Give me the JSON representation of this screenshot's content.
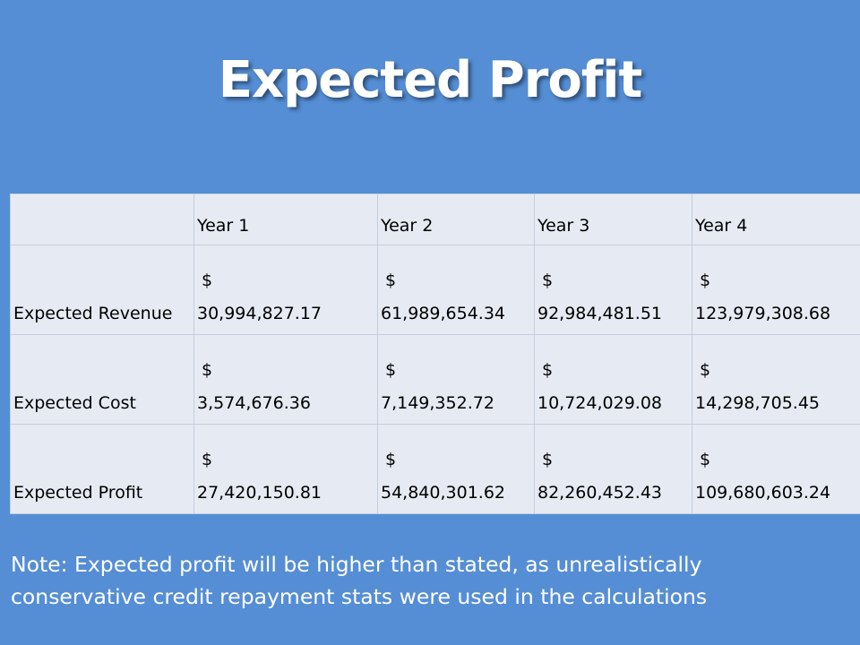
{
  "slide": {
    "title": "Expected Profit",
    "note_line1": "Note: Expected profit will be higher than stated, as unrealistically",
    "note_line2": "conservative credit repayment stats were used in the calculations"
  },
  "table": {
    "columns": [
      "",
      "Year 1",
      "Year 2",
      "Year 3",
      "Year 4"
    ],
    "rows": [
      {
        "label": "Expected Revenue",
        "cells": [
          {
            "currency": "$",
            "amount": "30,994,827.17"
          },
          {
            "currency": "$",
            "amount": "61,989,654.34"
          },
          {
            "currency": "$",
            "amount": "92,984,481.51"
          },
          {
            "currency": "$",
            "amount": "123,979,308.68"
          }
        ]
      },
      {
        "label": "Expected Cost",
        "cells": [
          {
            "currency": "$",
            "amount": "3,574,676.36"
          },
          {
            "currency": "$",
            "amount": "7,149,352.72"
          },
          {
            "currency": "$",
            "amount": "10,724,029.08"
          },
          {
            "currency": "$",
            "amount": "14,298,705.45"
          }
        ]
      },
      {
        "label": "Expected Profit",
        "cells": [
          {
            "currency": "$",
            "amount": "27,420,150.81"
          },
          {
            "currency": "$",
            "amount": "54,840,301.62"
          },
          {
            "currency": "$",
            "amount": "82,260,452.43"
          },
          {
            "currency": "$",
            "amount": "109,680,603.24"
          }
        ]
      }
    ]
  },
  "colors": {
    "background": "#558ed5",
    "cell_background": "#e6ebf3",
    "title_text": "#ffffff"
  }
}
